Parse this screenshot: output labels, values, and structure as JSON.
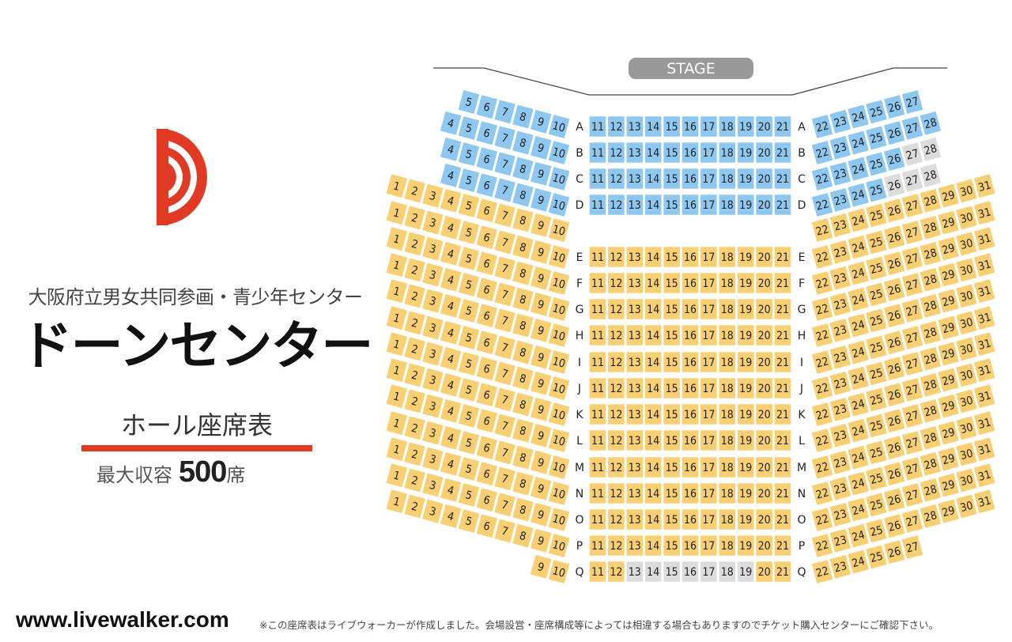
{
  "header": {
    "subtitle": "大阪府立男女共同参画・青少年センター",
    "title": "ドーンセンター"
  },
  "hall": {
    "label": "ホール座席表",
    "capacity_label": "最大収容",
    "capacity_value": "500",
    "capacity_unit": "席"
  },
  "footer": {
    "site": "www.livewalker.com",
    "note": "※この座席表はライブウォーカーが作成しました。会場設営・座席構成等によっては相違する場合もありますのでチケット購入センターにご確認下さい。"
  },
  "stage": {
    "label": "STAGE"
  },
  "colors": {
    "blue_seat": "#8ec7ef",
    "yellow_seat": "#f8cf72",
    "gray_seat": "#dcdcdc",
    "brand_red": "#e03a25",
    "stage_gray": "#999999"
  },
  "rows": [
    {
      "label": "A",
      "zone": "blue",
      "left": [
        5,
        6,
        7,
        8,
        9,
        10
      ],
      "center": [
        11,
        12,
        13,
        14,
        15,
        16,
        17,
        18,
        19,
        20,
        21
      ],
      "right": [
        22,
        23,
        24,
        25,
        26,
        27
      ],
      "gray": []
    },
    {
      "label": "B",
      "zone": "blue",
      "left": [
        4,
        5,
        6,
        7,
        8,
        9,
        10
      ],
      "center": [
        11,
        12,
        13,
        14,
        15,
        16,
        17,
        18,
        19,
        20,
        21
      ],
      "right": [
        22,
        23,
        24,
        25,
        26,
        27,
        28
      ],
      "gray": []
    },
    {
      "label": "C",
      "zone": "blue",
      "left": [
        4,
        5,
        6,
        7,
        8,
        9,
        10
      ],
      "center": [
        11,
        12,
        13,
        14,
        15,
        16,
        17,
        18,
        19,
        20,
        21
      ],
      "right": [
        22,
        23,
        24,
        25,
        26,
        27,
        28
      ],
      "gray": []
    },
    {
      "label": "D",
      "zone": "blue",
      "left": [
        4,
        5,
        6,
        7,
        8,
        9,
        10
      ],
      "center": [
        11,
        12,
        13,
        14,
        15,
        16,
        17,
        18,
        19,
        20,
        21
      ],
      "right": [
        22,
        23,
        24,
        25,
        26,
        27,
        28
      ],
      "gray": []
    },
    {
      "label": "",
      "zone": "yellow",
      "left": [
        1,
        2,
        3,
        4,
        5,
        6,
        7,
        8,
        9,
        10
      ],
      "center": [],
      "right": [
        22,
        23,
        24,
        25,
        26,
        27,
        28,
        29,
        30,
        31
      ],
      "gray": []
    },
    {
      "label": "E",
      "zone": "yellow",
      "left": [
        1,
        2,
        3,
        4,
        5,
        6,
        7,
        8,
        9,
        10
      ],
      "center": [
        11,
        12,
        13,
        14,
        15,
        16,
        17,
        18,
        19,
        20,
        21
      ],
      "right": [
        22,
        23,
        24,
        25,
        26,
        27,
        28,
        29,
        30,
        31
      ],
      "gray": []
    },
    {
      "label": "F",
      "zone": "yellow",
      "left": [
        1,
        2,
        3,
        4,
        5,
        6,
        7,
        8,
        9,
        10
      ],
      "center": [
        11,
        12,
        13,
        14,
        15,
        16,
        17,
        18,
        19,
        20,
        21
      ],
      "right": [
        22,
        23,
        24,
        25,
        26,
        27,
        28,
        29,
        30,
        31
      ],
      "gray": []
    },
    {
      "label": "G",
      "zone": "yellow",
      "left": [
        1,
        2,
        3,
        4,
        5,
        6,
        7,
        8,
        9,
        10
      ],
      "center": [
        11,
        12,
        13,
        14,
        15,
        16,
        17,
        18,
        19,
        20,
        21
      ],
      "right": [
        22,
        23,
        24,
        25,
        26,
        27,
        28,
        29,
        30,
        31
      ],
      "gray": []
    },
    {
      "label": "H",
      "zone": "yellow",
      "left": [
        1,
        2,
        3,
        4,
        5,
        6,
        7,
        8,
        9,
        10
      ],
      "center": [
        11,
        12,
        13,
        14,
        15,
        16,
        17,
        18,
        19,
        20,
        21
      ],
      "right": [
        22,
        23,
        24,
        25,
        26,
        27,
        28,
        29,
        30,
        31
      ],
      "gray": []
    },
    {
      "label": "I",
      "zone": "yellow",
      "left": [
        1,
        2,
        3,
        4,
        5,
        6,
        7,
        8,
        9,
        10
      ],
      "center": [
        11,
        12,
        13,
        14,
        15,
        16,
        17,
        18,
        19,
        20,
        21
      ],
      "right": [
        22,
        23,
        24,
        25,
        26,
        27,
        28,
        29,
        30,
        31
      ],
      "gray": []
    },
    {
      "label": "J",
      "zone": "yellow",
      "left": [
        1,
        2,
        3,
        4,
        5,
        6,
        7,
        8,
        9,
        10
      ],
      "center": [
        11,
        12,
        13,
        14,
        15,
        16,
        17,
        18,
        19,
        20,
        21
      ],
      "right": [
        22,
        23,
        24,
        25,
        26,
        27,
        28,
        29,
        30,
        31
      ],
      "gray": []
    },
    {
      "label": "K",
      "zone": "yellow",
      "left": [
        1,
        2,
        3,
        4,
        5,
        6,
        7,
        8,
        9,
        10
      ],
      "center": [
        11,
        12,
        13,
        14,
        15,
        16,
        17,
        18,
        19,
        20,
        21
      ],
      "right": [
        22,
        23,
        24,
        25,
        26,
        27,
        28,
        29,
        30,
        31
      ],
      "gray": []
    },
    {
      "label": "L",
      "zone": "yellow",
      "left": [
        1,
        2,
        3,
        4,
        5,
        6,
        7,
        8,
        9,
        10
      ],
      "center": [
        11,
        12,
        13,
        14,
        15,
        16,
        17,
        18,
        19,
        20,
        21
      ],
      "right": [
        22,
        23,
        24,
        25,
        26,
        27,
        28,
        29,
        30,
        31
      ],
      "gray": []
    },
    {
      "label": "M",
      "zone": "yellow",
      "left": [
        1,
        2,
        3,
        4,
        5,
        6,
        7,
        8,
        9,
        10
      ],
      "center": [
        11,
        12,
        13,
        14,
        15,
        16,
        17,
        18,
        19,
        20,
        21
      ],
      "right": [
        22,
        23,
        24,
        25,
        26,
        27,
        28,
        29,
        30,
        31
      ],
      "gray": []
    },
    {
      "label": "N",
      "zone": "yellow",
      "left": [
        1,
        2,
        3,
        4,
        5,
        6,
        7,
        8,
        9,
        10
      ],
      "center": [
        11,
        12,
        13,
        14,
        15,
        16,
        17,
        18,
        19,
        20,
        21
      ],
      "right": [
        22,
        23,
        24,
        25,
        26,
        27,
        28,
        29,
        30,
        31
      ],
      "gray": []
    },
    {
      "label": "O",
      "zone": "yellow",
      "left": [
        1,
        2,
        3,
        4,
        5,
        6,
        7,
        8,
        9,
        10
      ],
      "center": [
        11,
        12,
        13,
        14,
        15,
        16,
        17,
        18,
        19,
        20,
        21
      ],
      "right": [
        22,
        23,
        24,
        25,
        26,
        27,
        28,
        29,
        30,
        31
      ],
      "gray": []
    },
    {
      "label": "P",
      "zone": "yellow",
      "left": [
        1,
        2,
        3,
        4,
        5,
        6,
        7,
        8,
        9,
        10
      ],
      "center": [
        11,
        12,
        13,
        14,
        15,
        16,
        17,
        18,
        19,
        20,
        21
      ],
      "right": [
        22,
        23,
        24,
        25,
        26,
        27,
        28,
        29,
        30,
        31
      ],
      "gray": []
    },
    {
      "label": "Q",
      "zone": "yellow",
      "left": [
        9,
        10
      ],
      "center": [
        11,
        12,
        13,
        14,
        15,
        16,
        17,
        18,
        19,
        20,
        21
      ],
      "right": [
        22,
        23,
        24,
        25,
        26,
        27
      ],
      "gray": []
    }
  ],
  "gray_seats": {
    "C": [
      27,
      28
    ],
    "D": [
      26,
      27,
      28
    ],
    "Q": [
      13,
      14,
      15,
      16,
      17,
      18,
      19
    ]
  }
}
